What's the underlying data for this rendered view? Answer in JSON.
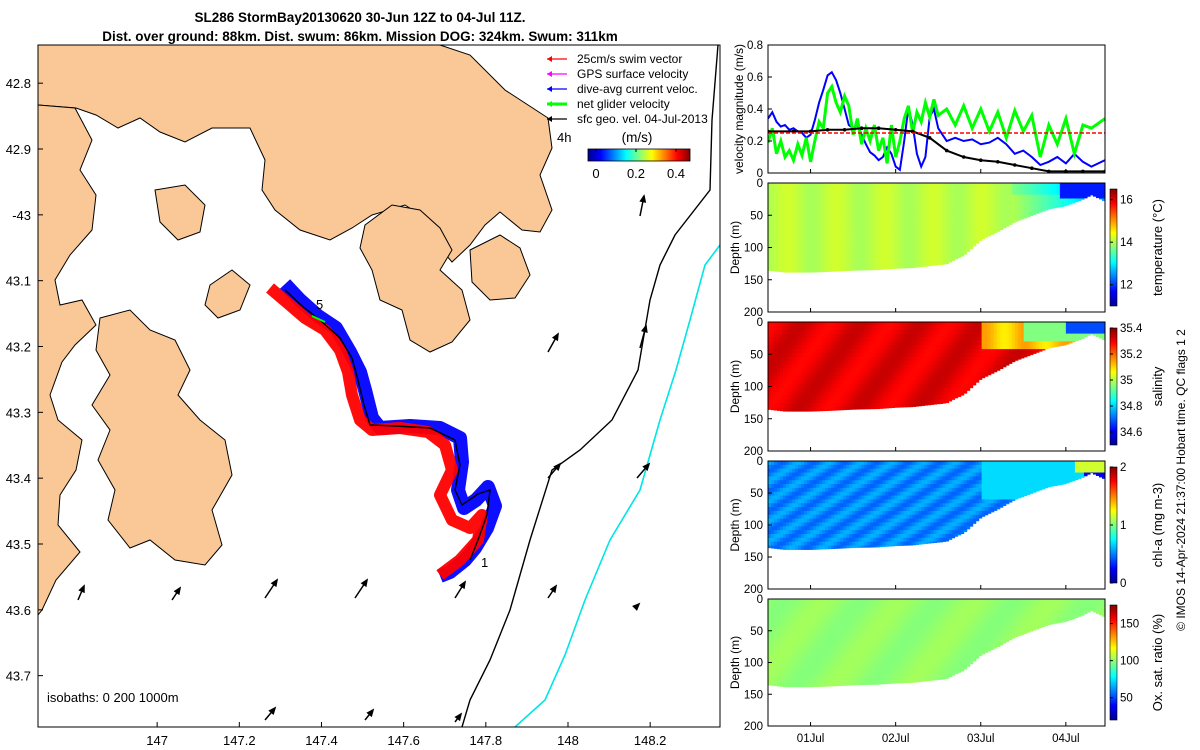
{
  "title": {
    "line1": "SL286 StormBay20130620 30-Jun 12Z to 04-Jul 11Z.",
    "line2": "Dist. over ground: 88km. Dist. swum: 86km. Mission DOG: 324km. Swum: 311km"
  },
  "colors": {
    "land": "#fac896",
    "water": "#ffffff",
    "swim_vector": "#ff0000",
    "gps_velocity": "#ff00ff",
    "dive_avg": "#0000ff",
    "net_glider": "#00ff00",
    "sfc_geo": "#000000",
    "isobath_200": "#000000",
    "isobath_1000": "#00e5e5"
  },
  "map": {
    "legend": [
      {
        "label": "25cm/s swim vector",
        "color": "#ff0000",
        "icon": "arrow-icon"
      },
      {
        "label": "GPS surface velocity",
        "color": "#ff00ff",
        "icon": "arrow-icon"
      },
      {
        "label": "dive-avg current veloc.",
        "color": "#0000ff",
        "icon": "arrow-icon"
      },
      {
        "label": "net glider velocity",
        "color": "#00ff00",
        "icon": "arrow-icon"
      },
      {
        "label": "sfc geo. vel. 04-Jul-2013",
        "color": "#000000",
        "icon": "arrow-icon"
      }
    ],
    "time_step_label": "4h",
    "colorbar_unit": "(m/s)",
    "colorbar_ticks": [
      "0",
      "0.2",
      "0.4"
    ],
    "isobath_label": "isobaths: 0   200  1000m",
    "start_label": "1",
    "end_label": "5",
    "lon_ticks": [
      "147",
      "147.2",
      "147.4",
      "147.6",
      "147.8",
      "148",
      "148.2"
    ],
    "lat_ticks": [
      "42.8",
      "42.9",
      "-43",
      "43.1",
      "43.2",
      "43.3",
      "43.4",
      "43.5",
      "43.6",
      "43.7"
    ]
  },
  "chart_data": [
    {
      "type": "line",
      "title": "",
      "xlabel": "",
      "ylabel": "velocity magnitude (m/s)",
      "ylim": [
        0,
        0.8
      ],
      "y_ticks": [
        "0",
        "0.2",
        "0.4",
        "0.6",
        "0.8"
      ],
      "x_ticks": [
        "01Jul",
        "02Jul",
        "03Jul",
        "04Jul"
      ],
      "x_tick_days": [
        1,
        2,
        3,
        4
      ],
      "xlim_days": [
        0.5,
        4.46
      ],
      "series": [
        {
          "name": "dive-avg current veloc.",
          "color": "#0000ff",
          "x": [
            0.5,
            0.55,
            0.6,
            0.65,
            0.7,
            0.75,
            0.8,
            0.85,
            0.9,
            0.95,
            1.0,
            1.05,
            1.1,
            1.15,
            1.2,
            1.25,
            1.3,
            1.35,
            1.4,
            1.45,
            1.5,
            1.55,
            1.6,
            1.65,
            1.7,
            1.75,
            1.8,
            1.85,
            1.9,
            1.95,
            2.0,
            2.05,
            2.1,
            2.15,
            2.2,
            2.25,
            2.3,
            2.35,
            2.4,
            2.45,
            2.5,
            2.6,
            2.7,
            2.8,
            2.9,
            3.0,
            3.1,
            3.2,
            3.3,
            3.4,
            3.5,
            3.6,
            3.7,
            3.8,
            3.9,
            4.0,
            4.1,
            4.2,
            4.3,
            4.46
          ],
          "values": [
            0.34,
            0.38,
            0.32,
            0.29,
            0.3,
            0.27,
            0.28,
            0.26,
            0.25,
            0.22,
            0.24,
            0.33,
            0.44,
            0.52,
            0.61,
            0.63,
            0.58,
            0.5,
            0.4,
            0.3,
            0.28,
            0.3,
            0.24,
            0.18,
            0.13,
            0.11,
            0.08,
            0.1,
            0.16,
            0.12,
            0.04,
            0.02,
            0.2,
            0.41,
            0.3,
            0.12,
            0.04,
            0.1,
            0.35,
            0.4,
            0.28,
            0.2,
            0.22,
            0.2,
            0.21,
            0.18,
            0.19,
            0.22,
            0.18,
            0.12,
            0.14,
            0.1,
            0.05,
            0.07,
            0.1,
            0.06,
            0.12,
            0.07,
            0.04,
            0.08
          ]
        },
        {
          "name": "net glider velocity",
          "color": "#00ff00",
          "x": [
            0.5,
            0.55,
            0.6,
            0.65,
            0.7,
            0.75,
            0.8,
            0.85,
            0.9,
            0.95,
            1.0,
            1.05,
            1.1,
            1.15,
            1.2,
            1.25,
            1.3,
            1.35,
            1.4,
            1.45,
            1.5,
            1.55,
            1.6,
            1.65,
            1.7,
            1.75,
            1.8,
            1.85,
            1.9,
            1.95,
            2.0,
            2.05,
            2.1,
            2.15,
            2.2,
            2.25,
            2.3,
            2.35,
            2.4,
            2.45,
            2.5,
            2.6,
            2.7,
            2.8,
            2.9,
            3.0,
            3.1,
            3.2,
            3.3,
            3.4,
            3.5,
            3.6,
            3.7,
            3.8,
            3.9,
            4.0,
            4.1,
            4.2,
            4.3,
            4.46
          ],
          "values": [
            0.19,
            0.28,
            0.12,
            0.2,
            0.1,
            0.14,
            0.08,
            0.18,
            0.11,
            0.22,
            0.07,
            0.2,
            0.32,
            0.28,
            0.5,
            0.54,
            0.44,
            0.38,
            0.48,
            0.42,
            0.24,
            0.34,
            0.18,
            0.28,
            0.2,
            0.3,
            0.14,
            0.22,
            0.06,
            0.3,
            0.1,
            0.2,
            0.34,
            0.42,
            0.25,
            0.38,
            0.32,
            0.44,
            0.35,
            0.46,
            0.36,
            0.4,
            0.3,
            0.42,
            0.28,
            0.4,
            0.26,
            0.38,
            0.22,
            0.39,
            0.26,
            0.36,
            0.1,
            0.3,
            0.18,
            0.34,
            0.12,
            0.3,
            0.28,
            0.34
          ]
        },
        {
          "name": "sfc geo. vel.",
          "color": "#000000",
          "x": [
            0.5,
            0.8,
            1.0,
            1.2,
            1.4,
            1.6,
            1.8,
            2.0,
            2.2,
            2.4,
            2.6,
            2.8,
            3.0,
            3.2,
            3.4,
            3.6,
            3.8,
            4.0,
            4.2,
            4.46
          ],
          "values": [
            0.26,
            0.26,
            0.26,
            0.27,
            0.27,
            0.28,
            0.28,
            0.27,
            0.26,
            0.22,
            0.14,
            0.1,
            0.08,
            0.07,
            0.05,
            0.03,
            0.01,
            0.01,
            0.01,
            0.01
          ]
        },
        {
          "name": "mean",
          "color": "#ff0000",
          "x": [
            0.5,
            4.46
          ],
          "values": [
            0.25,
            0.25
          ]
        }
      ]
    },
    {
      "type": "heatmap",
      "variable": "temperature",
      "ylabel": "Depth (m)",
      "clabel": "temperature (°C)",
      "ylim": [
        0,
        200
      ],
      "y_ticks": [
        "0",
        "50",
        "100",
        "150",
        "200"
      ],
      "c_ticks": [
        "12",
        "14",
        "16"
      ],
      "clim": [
        11,
        16.5
      ],
      "max_depth_x": [
        0.5,
        0.7,
        1.0,
        1.2,
        1.5,
        1.8,
        2.0,
        2.2,
        2.4,
        2.6,
        2.7,
        2.8,
        2.9,
        3.0,
        3.2,
        3.4,
        3.6,
        3.8,
        4.0,
        4.2,
        4.3,
        4.46
      ],
      "max_depth": [
        135,
        138,
        138,
        137,
        135,
        134,
        132,
        131,
        128,
        125,
        118,
        112,
        100,
        88,
        75,
        60,
        50,
        40,
        35,
        25,
        18,
        28
      ]
    },
    {
      "type": "heatmap",
      "variable": "salinity",
      "ylabel": "Depth (m)",
      "clabel": "salinity",
      "ylim": [
        0,
        200
      ],
      "y_ticks": [
        "0",
        "50",
        "100",
        "150",
        "200"
      ],
      "c_ticks": [
        "34.6",
        "34.8",
        "35",
        "35.2",
        "35.4"
      ],
      "clim": [
        34.5,
        35.4
      ],
      "max_depth_x": [
        0.5,
        0.7,
        1.0,
        1.2,
        1.5,
        1.8,
        2.0,
        2.2,
        2.4,
        2.6,
        2.7,
        2.8,
        2.9,
        3.0,
        3.2,
        3.4,
        3.6,
        3.8,
        4.0,
        4.2,
        4.3,
        4.46
      ],
      "max_depth": [
        135,
        138,
        138,
        137,
        135,
        134,
        132,
        131,
        128,
        125,
        118,
        112,
        100,
        88,
        75,
        60,
        50,
        40,
        35,
        25,
        18,
        28
      ]
    },
    {
      "type": "heatmap",
      "variable": "chl-a",
      "ylabel": "Depth (m)",
      "clabel": "chl-a (mg m-3)",
      "ylim": [
        0,
        200
      ],
      "y_ticks": [
        "0",
        "50",
        "100",
        "150",
        "200"
      ],
      "c_ticks": [
        "0",
        "1",
        "2"
      ],
      "clim": [
        0,
        2
      ],
      "max_depth_x": [
        0.5,
        0.7,
        1.0,
        1.2,
        1.5,
        1.8,
        2.0,
        2.2,
        2.4,
        2.6,
        2.7,
        2.8,
        2.9,
        3.0,
        3.2,
        3.4,
        3.6,
        3.8,
        4.0,
        4.2,
        4.3,
        4.46
      ],
      "max_depth": [
        135,
        138,
        138,
        137,
        135,
        134,
        132,
        131,
        128,
        125,
        118,
        112,
        100,
        88,
        75,
        60,
        50,
        40,
        35,
        25,
        18,
        28
      ]
    },
    {
      "type": "heatmap",
      "variable": "oxygen",
      "ylabel": "Depth (m)",
      "clabel": "Ox. sat. ratio (%)",
      "ylim": [
        0,
        200
      ],
      "y_ticks": [
        "0",
        "50",
        "100",
        "150",
        "200"
      ],
      "c_ticks": [
        "50",
        "100",
        "150"
      ],
      "clim": [
        20,
        175
      ],
      "max_depth_x": [
        0.5,
        0.7,
        1.0,
        1.2,
        1.5,
        1.8,
        2.0,
        2.2,
        2.4,
        2.6,
        2.7,
        2.8,
        2.9,
        3.0,
        3.2,
        3.4,
        3.6,
        3.8,
        4.0,
        4.2,
        4.3,
        4.46
      ],
      "max_depth": [
        135,
        138,
        138,
        137,
        135,
        134,
        132,
        131,
        128,
        125,
        118,
        112,
        100,
        88,
        75,
        60,
        50,
        40,
        35,
        25,
        18,
        28
      ]
    }
  ],
  "footer": {
    "credit": "© IMOS 14-Apr-2024 21:37:00 Hobart time. QC flags 1  2"
  }
}
